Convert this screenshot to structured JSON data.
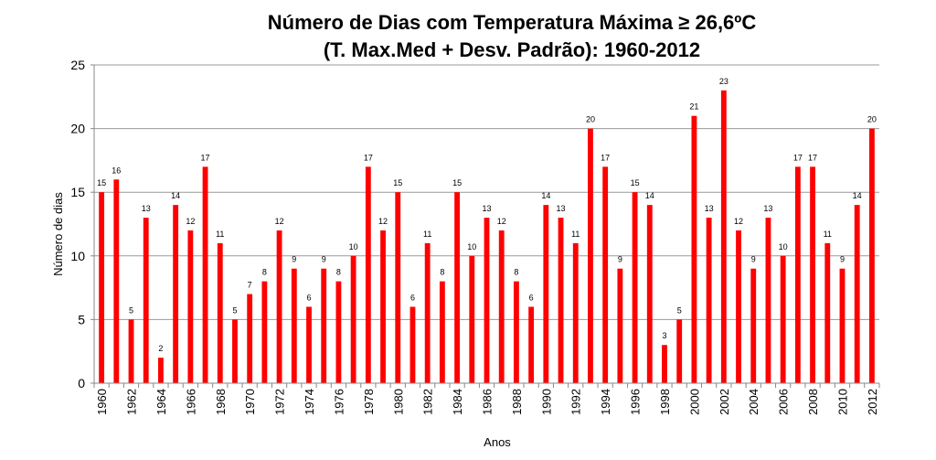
{
  "chart_data": {
    "type": "bar",
    "title": "Número de Dias com Temperatura Máxima ≥ 26,6ºC",
    "subtitle": "(T. Max.Med + Desv. Padrão): 1960-2012",
    "xlabel": "Anos",
    "ylabel": "Número de dias",
    "ylim": [
      0,
      25
    ],
    "yticks": [
      "0",
      "5",
      "10",
      "15",
      "20",
      "25"
    ],
    "grid": true,
    "bar_color": "#ff0000",
    "categories": [
      "1960",
      "1961",
      "1962",
      "1963",
      "1964",
      "1965",
      "1966",
      "1967",
      "1968",
      "1969",
      "1970",
      "1971",
      "1972",
      "1973",
      "1974",
      "1975",
      "1976",
      "1977",
      "1978",
      "1979",
      "1980",
      "1981",
      "1982",
      "1983",
      "1984",
      "1985",
      "1986",
      "1987",
      "1988",
      "1989",
      "1990",
      "1991",
      "1992",
      "1993",
      "1994",
      "1995",
      "1996",
      "1997",
      "1998",
      "1999",
      "2000",
      "2001",
      "2002",
      "2003",
      "2004",
      "2005",
      "2006",
      "2007",
      "2008",
      "2009",
      "2010",
      "2011",
      "2012"
    ],
    "x_tick_labels": [
      "1960",
      "1962",
      "1964",
      "1966",
      "1968",
      "1970",
      "1972",
      "1974",
      "1976",
      "1978",
      "1980",
      "1982",
      "1984",
      "1986",
      "1988",
      "1990",
      "1992",
      "1994",
      "1996",
      "1998",
      "2000",
      "2002",
      "2004",
      "2006",
      "2008",
      "2010",
      "2012"
    ],
    "values": [
      15,
      16,
      5,
      13,
      2,
      14,
      12,
      17,
      11,
      5,
      7,
      8,
      12,
      9,
      6,
      9,
      8,
      10,
      17,
      12,
      15,
      6,
      11,
      8,
      15,
      10,
      13,
      12,
      8,
      6,
      14,
      13,
      11,
      20,
      17,
      9,
      15,
      14,
      3,
      5,
      21,
      13,
      23,
      12,
      9,
      13,
      10,
      17,
      17,
      11,
      9,
      14,
      20
    ]
  }
}
